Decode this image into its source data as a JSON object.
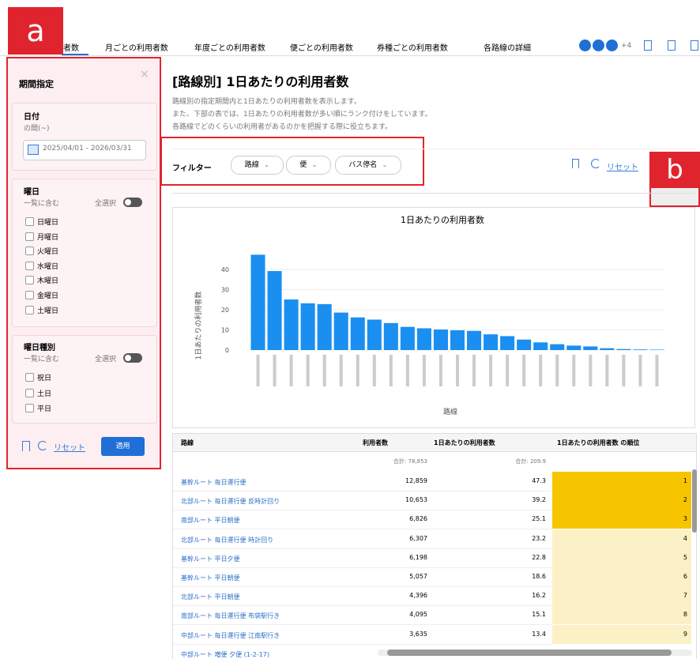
{
  "labels": {
    "a": "a",
    "b": "b"
  },
  "nav": {
    "tabs": [
      "者数",
      "月ごとの利用者数",
      "年度ごとの利用者数",
      "便ごとの利用者数",
      "券種ごとの利用者数",
      "各路線の詳細"
    ],
    "extra": "+4"
  },
  "sidebar": {
    "title": "期間指定",
    "date": {
      "label": "日付",
      "hint": "の間(~)",
      "range": "2025/04/01 - 2026/03/31"
    },
    "weekday": {
      "label": "曜日",
      "hint": "一覧に含む",
      "select_all": "全選択",
      "options": [
        "日曜日",
        "月曜日",
        "火曜日",
        "水曜日",
        "木曜日",
        "金曜日",
        "土曜日"
      ]
    },
    "daytype": {
      "label": "曜日種別",
      "hint": "一覧に含む",
      "select_all": "全選択",
      "options": [
        "祝日",
        "土日",
        "平日"
      ]
    },
    "reset": "リセット",
    "apply": "適用"
  },
  "main": {
    "title": "[路線別] 1日あたりの利用者数",
    "description": [
      "路線別の指定期間内と1日あたりの利用者数を表示します。",
      "また、下部の表では、1日あたりの利用者数が多い順にランク付けをしています。",
      "各路線でどのくらいの利用者があるのかを把握する際に役立ちます。"
    ]
  },
  "filter": {
    "label": "フィルター",
    "chips": [
      "路線",
      "便",
      "バス停名"
    ],
    "reset": "リセット"
  },
  "chart_data": {
    "type": "bar",
    "title": "1日あたりの利用者数",
    "y_label": "1日あたりの利用者数",
    "x_label": "路線",
    "categories": [
      null,
      null,
      null,
      null,
      null,
      null,
      null,
      null,
      null,
      null,
      null,
      null,
      null,
      null,
      null,
      null,
      null,
      null,
      null,
      null,
      null,
      null,
      null,
      null,
      null
    ],
    "values": [
      47.3,
      39.2,
      25.1,
      23.2,
      22.8,
      18.6,
      16.2,
      15.1,
      13.4,
      11.5,
      10.8,
      10.2,
      9.8,
      9.5,
      7.8,
      6.9,
      5.2,
      3.8,
      2.9,
      2.2,
      1.8,
      0.9,
      0.5,
      0.3,
      0.2
    ],
    "color": "#1a8ff0",
    "ylim": [
      0,
      50
    ],
    "yticks": [
      0,
      10,
      20,
      30,
      40
    ]
  },
  "table": {
    "columns": [
      "路線",
      "利用者数",
      "1日あたりの利用者数",
      "1日あたりの利用者数 の順位"
    ],
    "totals": {
      "users": "合計: 78,853",
      "per_day": "合計: 209.9"
    },
    "rows": [
      [
        "基幹ルート 毎日運行便",
        "12,859",
        "47.3",
        "1"
      ],
      [
        "北部ルート 毎日運行便 反時計回り",
        "10,653",
        "39.2",
        "2"
      ],
      [
        "南部ルート 平日朝便",
        "6,826",
        "25.1",
        "3"
      ],
      [
        "北部ルート 毎日運行便 時計回り",
        "6,307",
        "23.2",
        "4"
      ],
      [
        "基幹ルート 平日夕便",
        "6,198",
        "22.8",
        "5"
      ],
      [
        "基幹ルート 平日朝便",
        "5,057",
        "18.6",
        "6"
      ],
      [
        "北部ルート 平日朝便",
        "4,396",
        "16.2",
        "7"
      ],
      [
        "南部ルート 毎日運行便 布袋駅行き",
        "4,095",
        "15.1",
        "8"
      ],
      [
        "中部ルート 毎日運行便 江南駅行き",
        "3,635",
        "13.4",
        "9"
      ],
      [
        "中部ルート 増便 夕便 (1-2-17)"
      ]
    ]
  }
}
